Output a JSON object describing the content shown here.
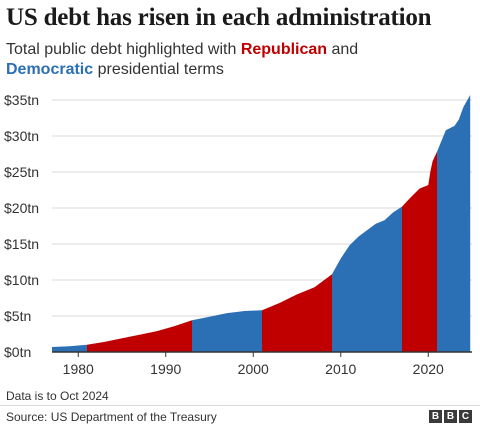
{
  "header": {
    "title": "US debt has risen in each administration",
    "subtitle_prefix": "Total public debt highlighted with ",
    "subtitle_rep": "Republican",
    "subtitle_and": " and",
    "subtitle_dem": "Democratic",
    "subtitle_suffix": " presidential terms"
  },
  "footer": {
    "note": "Data is to Oct 2024",
    "source": "Source: US Department of the Treasury",
    "logo_letters": [
      "B",
      "B",
      "C"
    ]
  },
  "colors": {
    "republican": "#c00000",
    "democratic": "#2b6fb5",
    "axis": "#333333",
    "grid": "#d9d9d9"
  },
  "chart_data": {
    "type": "area",
    "title": "US debt has risen in each administration",
    "xlabel": "",
    "ylabel": "",
    "xlim": [
      1977,
      2025
    ],
    "ylim": [
      0,
      35
    ],
    "y_ticks": [
      0,
      5,
      10,
      15,
      20,
      25,
      30,
      35
    ],
    "y_tick_labels": [
      "$0tn",
      "$5tn",
      "$10tn",
      "$15tn",
      "$20tn",
      "$25tn",
      "$30tn",
      "$35tn"
    ],
    "x_ticks": [
      1980,
      1990,
      2000,
      2010,
      2020
    ],
    "x_tick_labels": [
      "1980",
      "1990",
      "2000",
      "2010",
      "2020"
    ],
    "grid": true,
    "series": [
      {
        "name": "Total public debt ($tn)",
        "x": [
          1977,
          1979,
          1981,
          1983,
          1985,
          1987,
          1989,
          1991,
          1993,
          1995,
          1997,
          1999,
          2001,
          2003,
          2005,
          2007,
          2009,
          2010,
          2011,
          2012,
          2013,
          2014,
          2015,
          2016,
          2017,
          2018,
          2019,
          2020,
          2020.25,
          2020.5,
          2021,
          2022,
          2023,
          2023.5,
          2024,
          2024.8
        ],
        "y": [
          0.7,
          0.8,
          1.0,
          1.4,
          1.9,
          2.4,
          2.9,
          3.6,
          4.4,
          4.9,
          5.4,
          5.7,
          5.8,
          6.8,
          8.0,
          9.0,
          10.8,
          13.0,
          14.8,
          16.0,
          16.9,
          17.8,
          18.3,
          19.4,
          20.2,
          21.5,
          22.7,
          23.2,
          25.1,
          26.5,
          27.8,
          30.8,
          31.4,
          32.3,
          34.0,
          35.7
        ]
      }
    ],
    "administrations": [
      {
        "party": "democratic",
        "start": 1977,
        "end": 1981
      },
      {
        "party": "republican",
        "start": 1981,
        "end": 1993
      },
      {
        "party": "democratic",
        "start": 1993,
        "end": 2001
      },
      {
        "party": "republican",
        "start": 2001,
        "end": 2009
      },
      {
        "party": "democratic",
        "start": 2009,
        "end": 2017
      },
      {
        "party": "republican",
        "start": 2017,
        "end": 2021
      },
      {
        "party": "democratic",
        "start": 2021,
        "end": 2024.8
      }
    ]
  }
}
